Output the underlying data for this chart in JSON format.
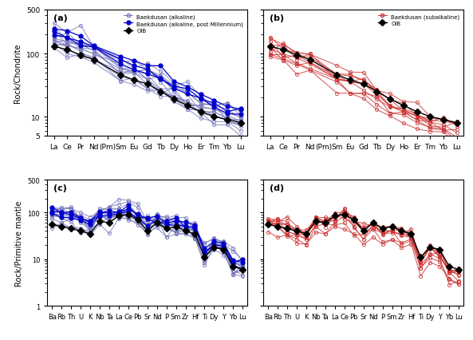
{
  "ree_elements": [
    "La",
    "Ce",
    "Pr",
    "Nd",
    "(Pm)",
    "Sm",
    "Eu",
    "Gd",
    "Tb",
    "Dy",
    "Ho",
    "Er",
    "Tm",
    "Yb",
    "Lu"
  ],
  "spider_elements": [
    "Ba",
    "Rb",
    "Th",
    "U",
    "K",
    "Nb",
    "Ta",
    "La",
    "Ce",
    "Pb",
    "Sr",
    "Nd",
    "P",
    "Sm",
    "Zr",
    "Hf",
    "Ti",
    "Dy",
    "Y",
    "Yb",
    "Lu"
  ],
  "blue_color": "#7777bb",
  "dark_blue_color": "#0000cc",
  "red_color": "#cc3333",
  "black_color": "#000000",
  "ylim_ree": [
    5,
    500
  ],
  "ylim_spider": [
    1,
    500
  ],
  "alkaline_label": "Baekdusan (alkaline)",
  "post_mill_label": "Baekdusan (alkaline, post Millennium)",
  "subalkaline_label": "Baekdusan (subalkaline)",
  "oib_label": "OIB"
}
